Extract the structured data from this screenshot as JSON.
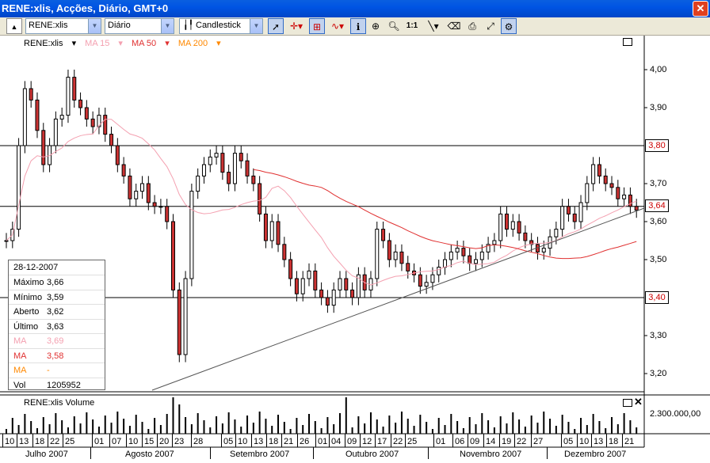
{
  "window": {
    "title": "RENE:xlis, Acções, Diário, GMT+0",
    "close": "✕"
  },
  "toolbar": {
    "symbol": "RENE:xlis",
    "period": "Diário",
    "chart_type": "Candlestick",
    "zoom_label": "1:1"
  },
  "legend": {
    "symbol": "RENE:xlis",
    "ma15": "MA 15",
    "ma50": "MA 50",
    "ma200": "MA 200",
    "ma15_color": "#f4a0b0",
    "ma50_color": "#e03030",
    "ma200_color": "#ff8800"
  },
  "y_axis": {
    "labels": [
      "4,00",
      "3,90",
      "3,70",
      "3,60",
      "3,50",
      "3,30",
      "3,20"
    ],
    "boxed": [
      "3,80",
      "3,64",
      "3,40"
    ]
  },
  "info_panel": {
    "date": "28-12-2007",
    "rows": [
      {
        "k": "Máximo",
        "v": "3,66",
        "color": "#000000"
      },
      {
        "k": "Mínimo",
        "v": "3,59",
        "color": "#000000"
      },
      {
        "k": "Aberto",
        "v": "3,62",
        "color": "#000000"
      },
      {
        "k": "Último",
        "v": "3,63",
        "color": "#000000"
      },
      {
        "k": "MA",
        "v": "3,69",
        "color": "#f4a0b0"
      },
      {
        "k": "MA",
        "v": "3,58",
        "color": "#e03030"
      },
      {
        "k": "MA",
        "v": "-",
        "color": "#ff8800"
      },
      {
        "k": "Vol",
        "v": "1205952",
        "color": "#000000"
      }
    ]
  },
  "volume": {
    "label": "RENE:xlis Volume",
    "axis_label": "2.300.000,00"
  },
  "x_axis": {
    "days": [
      "10",
      "13",
      "18",
      "22",
      "25",
      "01",
      "07",
      "10",
      "15",
      "20",
      "23",
      "28",
      "05",
      "10",
      "13",
      "18",
      "21",
      "26",
      "01",
      "04",
      "09",
      "12",
      "17",
      "22",
      "25",
      "01",
      "06",
      "09",
      "14",
      "19",
      "22",
      "27",
      "05",
      "10",
      "13",
      "18",
      "21"
    ],
    "months": [
      "Julho 2007",
      "Agosto 2007",
      "Setembro 2007",
      "Outubro 2007",
      "Novembro 2007",
      "Dezembro 2007"
    ]
  }
}
